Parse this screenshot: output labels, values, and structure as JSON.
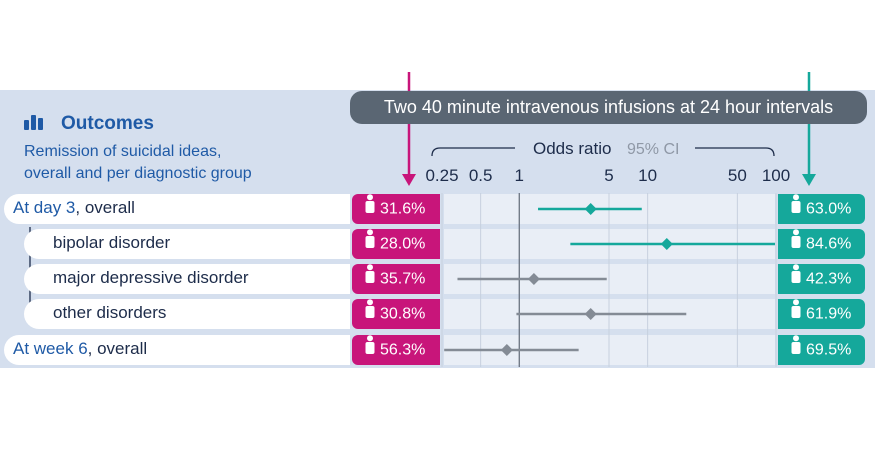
{
  "header": {
    "title": "Outcomes",
    "subtitle": "Remission of suicidal ideas,\noverall and per diagnostic group",
    "banner": "Two 40 minute intravenous infusions at 24 hour intervals"
  },
  "colors": {
    "placebo": "#c8157a",
    "treatment": "#15a89b",
    "neutral": "#848b95",
    "panel": "#d5dfee",
    "title": "#1f5aa6"
  },
  "icons": {
    "group_icon": "bar-chart-icon",
    "pct_icon": "person-icon"
  },
  "chart_data": {
    "type": "forest",
    "xlabel": "Odds ratio",
    "xlabel_note": "95% CI",
    "xscale": "log",
    "xlim": [
      0.25,
      100
    ],
    "xticks": [
      0.25,
      0.5,
      1,
      5,
      10,
      50,
      100
    ],
    "xtick_labels": [
      "0.25",
      "0.5",
      "1",
      "5",
      "10",
      "50",
      "100"
    ],
    "rows": [
      {
        "prefix": "At day 3",
        "label": ", overall",
        "placebo": "31.6%",
        "treatment": "63.0%",
        "or": 3.6,
        "ci": [
          1.4,
          9.0
        ],
        "significant": true
      },
      {
        "prefix": "",
        "label": "bipolar disorder",
        "placebo": "28.0%",
        "treatment": "84.6%",
        "or": 14.1,
        "ci": [
          2.5,
          100
        ],
        "significant": true
      },
      {
        "prefix": "",
        "label": "major depressive disorder",
        "placebo": "35.7%",
        "treatment": "42.3%",
        "or": 1.3,
        "ci": [
          0.33,
          4.8
        ],
        "significant": false
      },
      {
        "prefix": "",
        "label": "other disorders",
        "placebo": "30.8%",
        "treatment": "61.9%",
        "or": 3.6,
        "ci": [
          0.95,
          20
        ],
        "significant": false
      },
      {
        "prefix": "At week 6",
        "label": ", overall",
        "placebo": "56.3%",
        "treatment": "69.5%",
        "or": 0.8,
        "ci": [
          0.26,
          2.9
        ],
        "significant": false
      }
    ]
  }
}
